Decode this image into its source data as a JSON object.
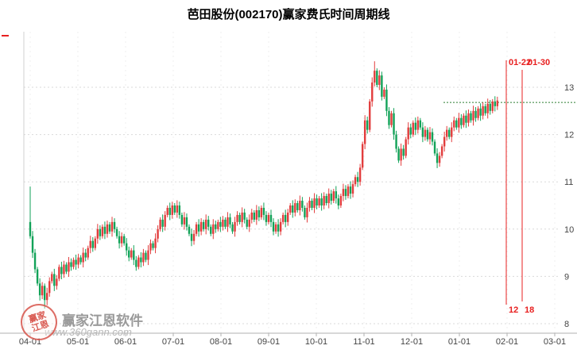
{
  "title": "芭田股份(002170)赢家费氏时间周期线",
  "watermark": {
    "brand": "赢家江恩软件",
    "url": "www.360gann.com",
    "stamp_line1": "赢家",
    "stamp_line2": "江恩"
  },
  "chart_data": {
    "type": "candlestick",
    "title": "芭田股份(002170)赢家费氏时间周期线",
    "x_tick_labels": [
      "04-01",
      "05-01",
      "06-01",
      "07-01",
      "08-01",
      "09-01",
      "10-01",
      "11-01",
      "12-01",
      "01-01",
      "02-01",
      "03-01"
    ],
    "y_ticks": [
      8,
      9,
      10,
      11,
      12,
      13
    ],
    "y_range": [
      8,
      13.6
    ],
    "grid": true,
    "open_first": 10.15,
    "closes": [
      9.85,
      9.5,
      9.15,
      8.85,
      8.6,
      8.8,
      8.5,
      8.65,
      8.9,
      9.05,
      8.8,
      8.95,
      9.2,
      9.05,
      9.25,
      9.1,
      9.3,
      9.2,
      9.35,
      9.25,
      9.4,
      9.3,
      9.5,
      9.4,
      9.6,
      9.75,
      9.6,
      9.8,
      10.0,
      9.85,
      10.05,
      9.9,
      10.1,
      9.95,
      10.15,
      10.0,
      9.85,
      9.7,
      9.85,
      9.7,
      9.55,
      9.4,
      9.55,
      9.35,
      9.2,
      9.4,
      9.3,
      9.5,
      9.35,
      9.55,
      9.7,
      9.6,
      9.8,
      10.0,
      10.2,
      10.05,
      10.3,
      10.45,
      10.3,
      10.5,
      10.35,
      10.5,
      10.3,
      10.1,
      10.25,
      10.05,
      9.9,
      9.75,
      9.9,
      10.1,
      9.95,
      10.15,
      10.0,
      10.2,
      10.05,
      9.9,
      10.1,
      10.0,
      10.15,
      10.05,
      10.2,
      10.05,
      10.25,
      10.1,
      9.95,
      10.15,
      10.3,
      10.15,
      10.35,
      10.2,
      10.05,
      10.2,
      10.35,
      10.2,
      10.4,
      10.25,
      10.45,
      10.3,
      10.15,
      10.3,
      10.15,
      9.95,
      10.1,
      9.95,
      10.15,
      10.3,
      10.15,
      10.35,
      10.5,
      10.35,
      10.55,
      10.4,
      10.6,
      10.45,
      10.25,
      10.45,
      10.6,
      10.45,
      10.65,
      10.5,
      10.65,
      10.5,
      10.7,
      10.55,
      10.75,
      10.6,
      10.8,
      10.65,
      10.5,
      10.7,
      10.85,
      10.7,
      10.9,
      10.75,
      10.95,
      11.1,
      11.0,
      11.3,
      11.8,
      12.3,
      12.1,
      12.7,
      13.1,
      13.35,
      13.05,
      13.25,
      12.8,
      12.95,
      12.5,
      12.2,
      12.45,
      12.0,
      11.7,
      11.45,
      11.7,
      11.55,
      11.9,
      12.15,
      12.0,
      12.25,
      12.1,
      12.3,
      12.15,
      11.95,
      12.1,
      11.9,
      12.05,
      11.85,
      11.6,
      11.4,
      11.55,
      11.75,
      11.95,
      12.1,
      11.95,
      12.15,
      12.3,
      12.15,
      12.35,
      12.2,
      12.4,
      12.25,
      12.45,
      12.3,
      12.5,
      12.35,
      12.55,
      12.4,
      12.6,
      12.45,
      12.65,
      12.5,
      12.7,
      12.6,
      12.72
    ],
    "wick_overrides": {
      "0": {
        "high": 10.9
      },
      "6": {
        "low": 8.32
      },
      "143": {
        "high": 13.55
      }
    },
    "last_price": 12.68,
    "fib_time_lines": [
      {
        "x": 637,
        "date_label": "01-22",
        "count_label": "12"
      },
      {
        "x": 657,
        "date_label": "01-30",
        "count_label": "18"
      }
    ],
    "colors": {
      "up": "#e23d3d",
      "down": "#12a258",
      "grid": "#d9d9d9",
      "vgrid": "#efefef",
      "axis": "#b0b0b0",
      "label": "#444444",
      "annotation": "#e82020",
      "last_price_line": "#2e7d32"
    },
    "legend_position": "none"
  }
}
